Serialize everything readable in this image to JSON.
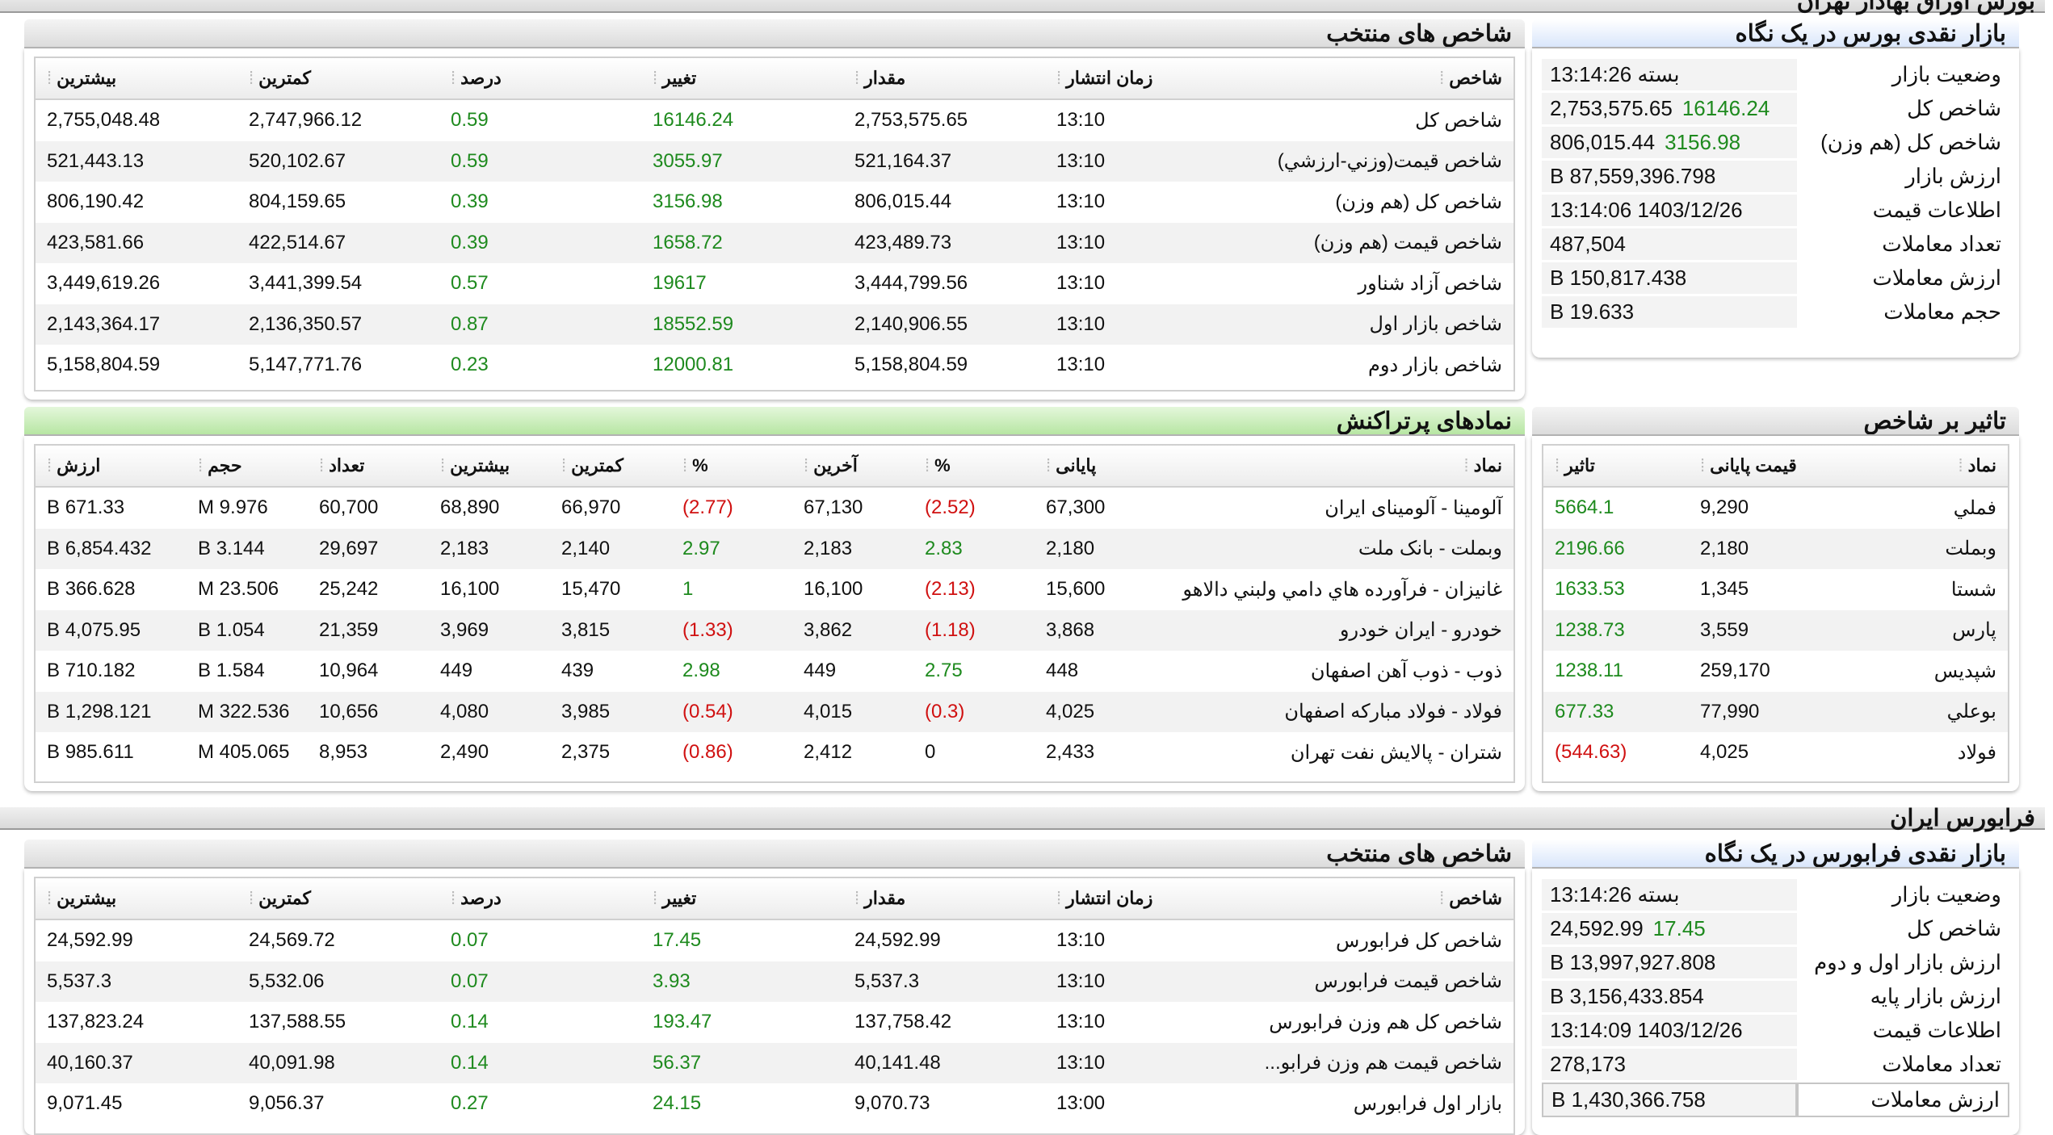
{
  "tse": {
    "section_title": "بورس اوراق بهادار تهران",
    "glance": {
      "title": "بازار نقدی بورس در یک نگاه",
      "rows": [
        {
          "label": "وضعیت بازار",
          "value": "بسته 13:14:26",
          "change": ""
        },
        {
          "label": "شاخص کل",
          "value": "2,753,575.65",
          "change": "16146.24"
        },
        {
          "label": "شاخص کل (هم وزن)",
          "value": "806,015.44",
          "change": "3156.98"
        },
        {
          "label": "ارزش بازار",
          "value": "87,559,396.798 B",
          "change": ""
        },
        {
          "label": "اطلاعات قیمت",
          "value": "1403/12/26 13:14:06",
          "change": ""
        },
        {
          "label": "تعداد معاملات",
          "value": "487,504",
          "change": ""
        },
        {
          "label": "ارزش معاملات",
          "value": "150,817.438 B",
          "change": ""
        },
        {
          "label": "حجم معاملات",
          "value": "19.633 B",
          "change": ""
        }
      ]
    },
    "indices": {
      "title": "شاخص های منتخب",
      "headers": [
        "شاخص",
        "زمان انتشار",
        "مقدار",
        "تغییر",
        "درصد",
        "کمترین",
        "بیشترین"
      ],
      "rows": [
        {
          "name": "شاخص کل",
          "time": "13:10",
          "value": "2,753,575.65",
          "change": "16146.24",
          "percent": "0.59",
          "min": "2,747,966.12",
          "max": "2,755,048.48"
        },
        {
          "name": "شاخص قيمت(وزني-ارزشي)",
          "time": "13:10",
          "value": "521,164.37",
          "change": "3055.97",
          "percent": "0.59",
          "min": "520,102.67",
          "max": "521,443.13"
        },
        {
          "name": "شاخص کل (هم وزن)",
          "time": "13:10",
          "value": "806,015.44",
          "change": "3156.98",
          "percent": "0.39",
          "min": "804,159.65",
          "max": "806,190.42"
        },
        {
          "name": "شاخص قیمت (هم وزن)",
          "time": "13:10",
          "value": "423,489.73",
          "change": "1658.72",
          "percent": "0.39",
          "min": "422,514.67",
          "max": "423,581.66"
        },
        {
          "name": "شاخص آزاد شناور",
          "time": "13:10",
          "value": "3,444,799.56",
          "change": "19617",
          "percent": "0.57",
          "min": "3,441,399.54",
          "max": "3,449,619.26"
        },
        {
          "name": "شاخص بازار اول",
          "time": "13:10",
          "value": "2,140,906.55",
          "change": "18552.59",
          "percent": "0.87",
          "min": "2,136,350.57",
          "max": "2,143,364.17"
        },
        {
          "name": "شاخص بازار دوم",
          "time": "13:10",
          "value": "5,158,804.59",
          "change": "12000.81",
          "percent": "0.23",
          "min": "5,147,771.76",
          "max": "5,158,804.59"
        }
      ]
    },
    "impact": {
      "title": "تاثیر بر شاخص",
      "headers": [
        "نماد",
        "قیمت پایانی",
        "تاثیر"
      ],
      "rows": [
        {
          "symbol": "فملي",
          "price": "9,290",
          "impact": "5664.1",
          "neg": false
        },
        {
          "symbol": "وبملت",
          "price": "2,180",
          "impact": "2196.66",
          "neg": false
        },
        {
          "symbol": "شستا",
          "price": "1,345",
          "impact": "1633.53",
          "neg": false
        },
        {
          "symbol": "پارس",
          "price": "3,559",
          "impact": "1238.73",
          "neg": false
        },
        {
          "symbol": "شپدیس",
          "price": "259,170",
          "impact": "1238.11",
          "neg": false
        },
        {
          "symbol": "بوعلي",
          "price": "77,990",
          "impact": "677.33",
          "neg": false
        },
        {
          "symbol": "فولاد",
          "price": "4,025",
          "impact": "(544.63)",
          "neg": true
        }
      ]
    },
    "traded": {
      "title": "نمادهای پرتراکنش",
      "headers": [
        "نماد",
        "پایانی",
        "%",
        "آخرین",
        "%",
        "کمترین",
        "بیشترین",
        "تعداد",
        "حجم",
        "ارزش"
      ],
      "rows": [
        {
          "symbol": "آلومينا - آلومينای ايران",
          "close": "67,300",
          "close_pct": "(2.52)",
          "close_neg": true,
          "last": "67,130",
          "last_pct": "(2.77)",
          "last_neg": true,
          "min": "66,970",
          "max": "68,890",
          "count": "60,700",
          "volume": "9.976 M",
          "value": "671.33 B"
        },
        {
          "symbol": "وبملت - بانک ملت",
          "close": "2,180",
          "close_pct": "2.83",
          "close_neg": false,
          "last": "2,183",
          "last_pct": "2.97",
          "last_neg": false,
          "min": "2,140",
          "max": "2,183",
          "count": "29,697",
          "volume": "3.144 B",
          "value": "6,854.432 B"
        },
        {
          "symbol": "غانیزان - فرآورده هاي دامي ولبني دالاهو",
          "close": "15,600",
          "close_pct": "(2.13)",
          "close_neg": true,
          "last": "16,100",
          "last_pct": "1",
          "last_neg": false,
          "min": "15,470",
          "max": "16,100",
          "count": "25,242",
          "volume": "23.506 M",
          "value": "366.628 B"
        },
        {
          "symbol": "خودرو - ايران خودرو",
          "close": "3,868",
          "close_pct": "(1.18)",
          "close_neg": true,
          "last": "3,862",
          "last_pct": "(1.33)",
          "last_neg": true,
          "min": "3,815",
          "max": "3,969",
          "count": "21,359",
          "volume": "1.054 B",
          "value": "4,075.95 B"
        },
        {
          "symbol": "ذوب - ذوب آهن اصفهان",
          "close": "448",
          "close_pct": "2.75",
          "close_neg": false,
          "last": "449",
          "last_pct": "2.98",
          "last_neg": false,
          "min": "439",
          "max": "449",
          "count": "10,964",
          "volume": "1.584 B",
          "value": "710.182 B"
        },
        {
          "symbol": "فولاد - فولاد مبارکه اصفهان",
          "close": "4,025",
          "close_pct": "(0.3)",
          "close_neg": true,
          "last": "4,015",
          "last_pct": "(0.54)",
          "last_neg": true,
          "min": "3,985",
          "max": "4,080",
          "count": "10,656",
          "volume": "322.536 M",
          "value": "1,298.121 B"
        },
        {
          "symbol": "شتران - پالايش نفت تهران",
          "close": "2,433",
          "close_pct": "0",
          "close_neg": false,
          "last": "2,412",
          "last_pct": "(0.86)",
          "last_neg": true,
          "min": "2,375",
          "max": "2,490",
          "count": "8,953",
          "volume": "405.065 M",
          "value": "985.611 B"
        }
      ]
    }
  },
  "ifb": {
    "section_title": "فرابورس ایران",
    "glance": {
      "title": "بازار نقدی فرابورس در یک نگاه",
      "rows": [
        {
          "label": "وضعیت بازار",
          "value": "بسته 13:14:26",
          "change": ""
        },
        {
          "label": "شاخص کل",
          "value": "24,592.99",
          "change": "17.45"
        },
        {
          "label": "ارزش بازار اول و دوم",
          "value": "13,997,927.808 B",
          "change": ""
        },
        {
          "label": "ارزش بازار پایه",
          "value": "3,156,433.854 B",
          "change": ""
        },
        {
          "label": "اطلاعات قیمت",
          "value": "1403/12/26 13:14:09",
          "change": ""
        },
        {
          "label": "تعداد معاملات",
          "value": "278,173",
          "change": ""
        },
        {
          "label": "ارزش معاملات",
          "value": "1,430,366.758 B",
          "change": ""
        }
      ]
    },
    "indices": {
      "title": "شاخص های منتخب",
      "headers": [
        "شاخص",
        "زمان انتشار",
        "مقدار",
        "تغییر",
        "درصد",
        "کمترین",
        "بیشترین"
      ],
      "rows": [
        {
          "name": "شاخص کل فرابورس",
          "time": "13:10",
          "value": "24,592.99",
          "change": "17.45",
          "percent": "0.07",
          "min": "24,569.72",
          "max": "24,592.99"
        },
        {
          "name": "شاخص قیمت فرابورس",
          "time": "13:10",
          "value": "5,537.3",
          "change": "3.93",
          "percent": "0.07",
          "min": "5,532.06",
          "max": "5,537.3"
        },
        {
          "name": "شاخص کل هم وزن فرابورس",
          "time": "13:10",
          "value": "137,758.42",
          "change": "193.47",
          "percent": "0.14",
          "min": "137,588.55",
          "max": "137,823.24"
        },
        {
          "name": "شاخص قيمت هم وزن فرابو...",
          "time": "13:10",
          "value": "40,141.48",
          "change": "56.37",
          "percent": "0.14",
          "min": "40,091.98",
          "max": "40,160.37"
        },
        {
          "name": "بازار اول فرابورس",
          "time": "13:00",
          "value": "9,070.73",
          "change": "24.15",
          "percent": "0.27",
          "min": "9,056.37",
          "max": "9,071.45"
        }
      ]
    }
  }
}
